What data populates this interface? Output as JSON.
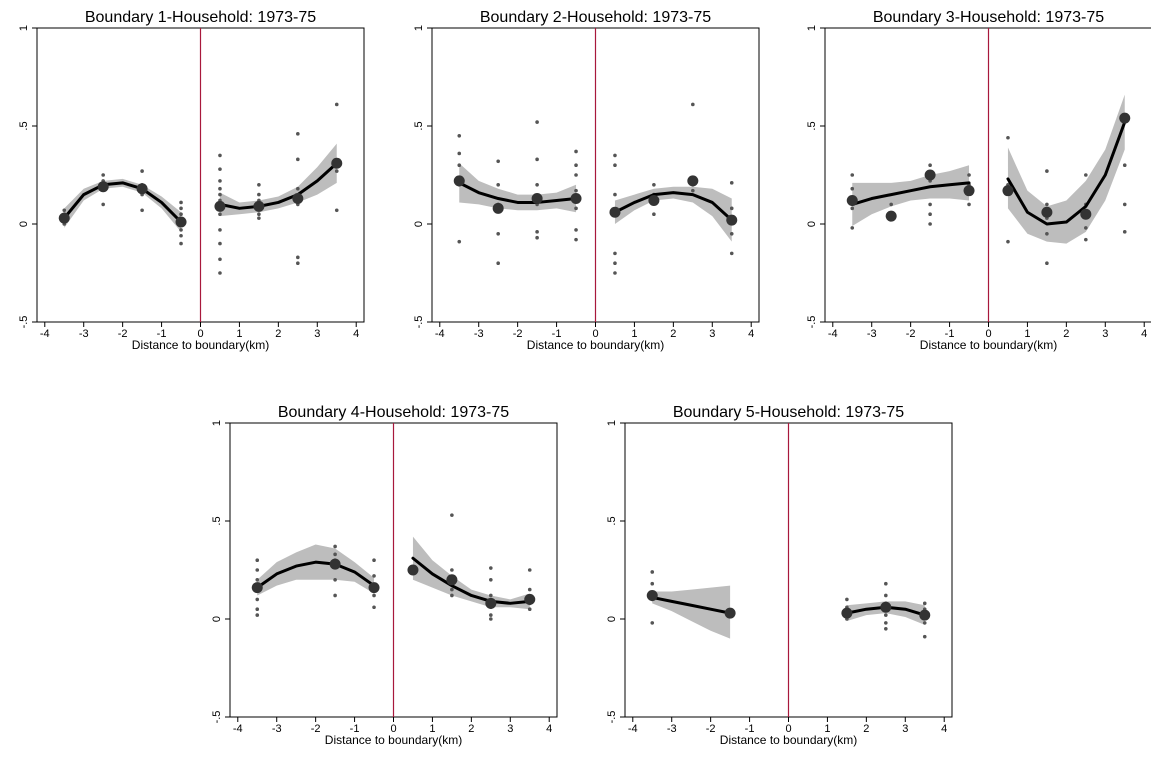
{
  "chart_data": [
    {
      "type": "scatter",
      "title": "Boundary 1-Household: 1973-75",
      "xlabel": "Distance to boundary(km)",
      "ylabel": "",
      "xlim": [
        -4.2,
        4.2
      ],
      "ylim": [
        -0.5,
        1.0
      ],
      "x_ticks": [
        "-4",
        "-3",
        "-2",
        "-1",
        "0",
        "1",
        "2",
        "3",
        "4"
      ],
      "y_ticks": [
        "-.5",
        "0",
        ".5",
        "1"
      ],
      "boundary_x": 0,
      "bin_means": [
        [
          -3.5,
          0.03
        ],
        [
          -2.5,
          0.19
        ],
        [
          -1.5,
          0.18
        ],
        [
          -0.5,
          0.01
        ],
        [
          0.5,
          0.09
        ],
        [
          1.5,
          0.09
        ],
        [
          2.5,
          0.13
        ],
        [
          3.5,
          0.31
        ]
      ],
      "raw_points": [
        [
          -3.5,
          0.05
        ],
        [
          -3.5,
          0.0
        ],
        [
          -3.5,
          0.07
        ],
        [
          -2.5,
          0.22
        ],
        [
          -2.5,
          0.25
        ],
        [
          -2.5,
          0.1
        ],
        [
          -1.5,
          0.27
        ],
        [
          -1.5,
          0.2
        ],
        [
          -1.5,
          0.15
        ],
        [
          -1.5,
          0.07
        ],
        [
          -0.5,
          0.11
        ],
        [
          -0.5,
          0.08
        ],
        [
          -0.5,
          0.05
        ],
        [
          -0.5,
          -0.03
        ],
        [
          -0.5,
          -0.06
        ],
        [
          -0.5,
          -0.1
        ],
        [
          0.5,
          0.35
        ],
        [
          0.5,
          0.28
        ],
        [
          0.5,
          0.22
        ],
        [
          0.5,
          0.18
        ],
        [
          0.5,
          0.15
        ],
        [
          0.5,
          0.12
        ],
        [
          0.5,
          0.05
        ],
        [
          0.5,
          -0.03
        ],
        [
          0.5,
          -0.1
        ],
        [
          0.5,
          -0.18
        ],
        [
          0.5,
          -0.25
        ],
        [
          1.5,
          0.2
        ],
        [
          1.5,
          0.15
        ],
        [
          1.5,
          0.12
        ],
        [
          1.5,
          0.05
        ],
        [
          1.5,
          0.03
        ],
        [
          2.5,
          0.46
        ],
        [
          2.5,
          0.33
        ],
        [
          2.5,
          0.18
        ],
        [
          2.5,
          0.1
        ],
        [
          2.5,
          -0.17
        ],
        [
          2.5,
          -0.2
        ],
        [
          3.5,
          0.61
        ],
        [
          3.5,
          0.27
        ],
        [
          3.5,
          0.07
        ]
      ],
      "fits": [
        {
          "x": [
            -3.5,
            -3.0,
            -2.5,
            -2.0,
            -1.5,
            -1.0,
            -0.5
          ],
          "y": [
            0.03,
            0.15,
            0.2,
            0.21,
            0.18,
            0.11,
            0.01
          ],
          "ci_low": [
            -0.02,
            0.12,
            0.18,
            0.19,
            0.16,
            0.08,
            -0.04
          ],
          "ci_high": [
            0.08,
            0.18,
            0.22,
            0.23,
            0.2,
            0.14,
            0.06
          ]
        },
        {
          "x": [
            0.5,
            1.0,
            1.5,
            2.0,
            2.5,
            3.0,
            3.5
          ],
          "y": [
            0.1,
            0.08,
            0.09,
            0.11,
            0.15,
            0.22,
            0.31
          ],
          "ci_low": [
            0.04,
            0.05,
            0.06,
            0.08,
            0.11,
            0.15,
            0.21
          ],
          "ci_high": [
            0.16,
            0.11,
            0.12,
            0.14,
            0.19,
            0.29,
            0.41
          ]
        }
      ]
    },
    {
      "type": "scatter",
      "title": "Boundary 2-Household: 1973-75",
      "xlabel": "Distance to boundary(km)",
      "ylabel": "",
      "xlim": [
        -4.2,
        4.2
      ],
      "ylim": [
        -0.5,
        1.0
      ],
      "x_ticks": [
        "-4",
        "-3",
        "-2",
        "-1",
        "0",
        "1",
        "2",
        "3",
        "4"
      ],
      "y_ticks": [
        "-.5",
        "0",
        ".5",
        "1"
      ],
      "boundary_x": 0,
      "bin_means": [
        [
          -3.5,
          0.22
        ],
        [
          -2.5,
          0.08
        ],
        [
          -1.5,
          0.13
        ],
        [
          -0.5,
          0.13
        ],
        [
          0.5,
          0.06
        ],
        [
          1.5,
          0.12
        ],
        [
          2.5,
          0.22
        ],
        [
          3.5,
          0.02
        ]
      ],
      "raw_points": [
        [
          -3.5,
          0.45
        ],
        [
          -3.5,
          0.36
        ],
        [
          -3.5,
          0.3
        ],
        [
          -3.5,
          0.2
        ],
        [
          -3.5,
          -0.09
        ],
        [
          -2.5,
          0.32
        ],
        [
          -2.5,
          0.2
        ],
        [
          -2.5,
          0.1
        ],
        [
          -2.5,
          -0.05
        ],
        [
          -2.5,
          -0.2
        ],
        [
          -1.5,
          0.52
        ],
        [
          -1.5,
          0.33
        ],
        [
          -1.5,
          0.2
        ],
        [
          -1.5,
          0.1
        ],
        [
          -1.5,
          -0.04
        ],
        [
          -1.5,
          -0.07
        ],
        [
          -0.5,
          0.37
        ],
        [
          -0.5,
          0.3
        ],
        [
          -0.5,
          0.25
        ],
        [
          -0.5,
          0.17
        ],
        [
          -0.5,
          0.08
        ],
        [
          -0.5,
          -0.03
        ],
        [
          -0.5,
          -0.08
        ],
        [
          0.5,
          0.35
        ],
        [
          0.5,
          0.3
        ],
        [
          0.5,
          0.15
        ],
        [
          0.5,
          0.05
        ],
        [
          0.5,
          -0.15
        ],
        [
          0.5,
          -0.2
        ],
        [
          0.5,
          -0.25
        ],
        [
          1.5,
          0.2
        ],
        [
          1.5,
          0.15
        ],
        [
          1.5,
          0.05
        ],
        [
          2.5,
          0.61
        ],
        [
          2.5,
          0.2
        ],
        [
          2.5,
          0.17
        ],
        [
          3.5,
          0.21
        ],
        [
          3.5,
          0.08
        ],
        [
          3.5,
          -0.05
        ],
        [
          3.5,
          -0.15
        ]
      ],
      "fits": [
        {
          "x": [
            -3.5,
            -3.0,
            -2.5,
            -2.0,
            -1.5,
            -1.0,
            -0.5
          ],
          "y": [
            0.21,
            0.16,
            0.13,
            0.11,
            0.11,
            0.12,
            0.13
          ],
          "ci_low": [
            0.11,
            0.1,
            0.08,
            0.07,
            0.07,
            0.08,
            0.06
          ],
          "ci_high": [
            0.31,
            0.22,
            0.18,
            0.15,
            0.15,
            0.16,
            0.2
          ]
        },
        {
          "x": [
            0.5,
            1.0,
            1.5,
            2.0,
            2.5,
            3.0,
            3.5
          ],
          "y": [
            0.06,
            0.11,
            0.15,
            0.16,
            0.15,
            0.11,
            0.02
          ],
          "ci_low": [
            0.0,
            0.07,
            0.12,
            0.13,
            0.11,
            0.04,
            -0.09
          ],
          "ci_high": [
            0.12,
            0.15,
            0.18,
            0.19,
            0.19,
            0.18,
            0.13
          ]
        }
      ]
    },
    {
      "type": "scatter",
      "title": "Boundary 3-Household: 1973-75",
      "xlabel": "Distance to boundary(km)",
      "ylabel": "",
      "xlim": [
        -4.2,
        4.2
      ],
      "ylim": [
        -0.5,
        1.0
      ],
      "x_ticks": [
        "-4",
        "-3",
        "-2",
        "-1",
        "0",
        "1",
        "2",
        "3",
        "4"
      ],
      "y_ticks": [
        "-.5",
        "0",
        ".5",
        "1"
      ],
      "boundary_x": 0,
      "bin_means": [
        [
          -3.5,
          0.12
        ],
        [
          -2.5,
          0.04
        ],
        [
          -1.5,
          0.25
        ],
        [
          -0.5,
          0.17
        ],
        [
          0.5,
          0.17
        ],
        [
          1.5,
          0.06
        ],
        [
          2.5,
          0.05
        ],
        [
          3.5,
          0.54
        ]
      ],
      "raw_points": [
        [
          -3.5,
          0.25
        ],
        [
          -3.5,
          0.18
        ],
        [
          -3.5,
          0.08
        ],
        [
          -3.5,
          -0.02
        ],
        [
          -2.5,
          0.1
        ],
        [
          -2.5,
          0.04
        ],
        [
          -1.5,
          0.3
        ],
        [
          -1.5,
          0.22
        ],
        [
          -1.5,
          0.1
        ],
        [
          -1.5,
          0.05
        ],
        [
          -1.5,
          0.0
        ],
        [
          -0.5,
          0.25
        ],
        [
          -0.5,
          0.2
        ],
        [
          -0.5,
          0.1
        ],
        [
          0.5,
          0.44
        ],
        [
          0.5,
          0.2
        ],
        [
          0.5,
          -0.09
        ],
        [
          1.5,
          0.27
        ],
        [
          1.5,
          0.1
        ],
        [
          1.5,
          0.03
        ],
        [
          1.5,
          -0.05
        ],
        [
          1.5,
          -0.2
        ],
        [
          2.5,
          0.25
        ],
        [
          2.5,
          0.1
        ],
        [
          2.5,
          -0.02
        ],
        [
          2.5,
          -0.08
        ],
        [
          3.5,
          0.3
        ],
        [
          3.5,
          0.1
        ],
        [
          3.5,
          -0.04
        ]
      ],
      "fits": [
        {
          "x": [
            -3.5,
            -3.0,
            -2.5,
            -2.0,
            -1.5,
            -1.0,
            -0.5
          ],
          "y": [
            0.1,
            0.13,
            0.15,
            0.17,
            0.19,
            0.2,
            0.21
          ],
          "ci_low": [
            -0.01,
            0.05,
            0.09,
            0.12,
            0.13,
            0.13,
            0.12
          ],
          "ci_high": [
            0.21,
            0.21,
            0.21,
            0.22,
            0.25,
            0.27,
            0.3
          ]
        },
        {
          "x": [
            0.5,
            1.0,
            1.5,
            2.0,
            2.5,
            3.0,
            3.5
          ],
          "y": [
            0.23,
            0.06,
            0.0,
            0.01,
            0.09,
            0.25,
            0.52
          ],
          "ci_low": [
            0.08,
            -0.05,
            -0.09,
            -0.1,
            -0.04,
            0.12,
            0.38
          ],
          "ci_high": [
            0.39,
            0.17,
            0.09,
            0.12,
            0.22,
            0.38,
            0.66
          ]
        }
      ]
    },
    {
      "type": "scatter",
      "title": "Boundary 4-Household: 1973-75",
      "xlabel": "Distance to boundary(km)",
      "ylabel": "",
      "xlim": [
        -4.2,
        4.2
      ],
      "ylim": [
        -0.5,
        1.0
      ],
      "x_ticks": [
        "-4",
        "-3",
        "-2",
        "-1",
        "0",
        "1",
        "2",
        "3",
        "4"
      ],
      "y_ticks": [
        "-.5",
        "0",
        ".5",
        "1"
      ],
      "boundary_x": 0,
      "bin_means": [
        [
          -3.5,
          0.16
        ],
        [
          -1.5,
          0.28
        ],
        [
          -0.5,
          0.16
        ],
        [
          0.5,
          0.25
        ],
        [
          1.5,
          0.2
        ],
        [
          2.5,
          0.08
        ],
        [
          3.5,
          0.1
        ]
      ],
      "raw_points": [
        [
          -3.5,
          0.3
        ],
        [
          -3.5,
          0.25
        ],
        [
          -3.5,
          0.2
        ],
        [
          -3.5,
          0.1
        ],
        [
          -3.5,
          0.05
        ],
        [
          -3.5,
          0.02
        ],
        [
          -1.5,
          0.37
        ],
        [
          -1.5,
          0.33
        ],
        [
          -1.5,
          0.3
        ],
        [
          -1.5,
          0.2
        ],
        [
          -1.5,
          0.12
        ],
        [
          -0.5,
          0.3
        ],
        [
          -0.5,
          0.22
        ],
        [
          -0.5,
          0.12
        ],
        [
          -0.5,
          0.06
        ],
        [
          0.5,
          0.26
        ],
        [
          1.5,
          0.53
        ],
        [
          1.5,
          0.25
        ],
        [
          1.5,
          0.15
        ],
        [
          1.5,
          0.12
        ],
        [
          2.5,
          0.26
        ],
        [
          2.5,
          0.2
        ],
        [
          2.5,
          0.12
        ],
        [
          2.5,
          0.06
        ],
        [
          2.5,
          0.02
        ],
        [
          2.5,
          0.0
        ],
        [
          3.5,
          0.25
        ],
        [
          3.5,
          0.15
        ],
        [
          3.5,
          0.08
        ],
        [
          3.5,
          0.05
        ]
      ],
      "fits": [
        {
          "x": [
            -3.5,
            -3.0,
            -2.5,
            -2.0,
            -1.5,
            -1.0,
            -0.5
          ],
          "y": [
            0.16,
            0.23,
            0.27,
            0.29,
            0.28,
            0.24,
            0.17
          ],
          "ci_low": [
            0.12,
            0.17,
            0.2,
            0.2,
            0.2,
            0.19,
            0.13
          ],
          "ci_high": [
            0.2,
            0.29,
            0.34,
            0.38,
            0.36,
            0.29,
            0.21
          ]
        },
        {
          "x": [
            0.5,
            1.0,
            1.5,
            2.0,
            2.5,
            3.0,
            3.5
          ],
          "y": [
            0.31,
            0.23,
            0.17,
            0.12,
            0.09,
            0.08,
            0.09
          ],
          "ci_low": [
            0.2,
            0.16,
            0.12,
            0.09,
            0.06,
            0.06,
            0.05
          ],
          "ci_high": [
            0.42,
            0.3,
            0.22,
            0.15,
            0.12,
            0.1,
            0.13
          ]
        }
      ]
    },
    {
      "type": "scatter",
      "title": "Boundary 5-Household: 1973-75",
      "xlabel": "Distance to boundary(km)",
      "ylabel": "",
      "xlim": [
        -4.2,
        4.2
      ],
      "ylim": [
        -0.5,
        1.0
      ],
      "x_ticks": [
        "-4",
        "-3",
        "-2",
        "-1",
        "0",
        "1",
        "2",
        "3",
        "4"
      ],
      "y_ticks": [
        "-.5",
        "0",
        ".5",
        "1"
      ],
      "boundary_x": 0,
      "bin_means": [
        [
          -3.5,
          0.12
        ],
        [
          -1.5,
          0.03
        ],
        [
          1.5,
          0.03
        ],
        [
          2.5,
          0.06
        ],
        [
          3.5,
          0.02
        ]
      ],
      "raw_points": [
        [
          -3.5,
          0.24
        ],
        [
          -3.5,
          0.18
        ],
        [
          -3.5,
          0.1
        ],
        [
          -3.5,
          -0.02
        ],
        [
          1.5,
          0.1
        ],
        [
          1.5,
          0.06
        ],
        [
          1.5,
          0.0
        ],
        [
          2.5,
          0.18
        ],
        [
          2.5,
          0.12
        ],
        [
          2.5,
          0.08
        ],
        [
          2.5,
          0.02
        ],
        [
          2.5,
          -0.02
        ],
        [
          2.5,
          -0.05
        ],
        [
          3.5,
          0.08
        ],
        [
          3.5,
          0.05
        ],
        [
          3.5,
          -0.02
        ],
        [
          3.5,
          -0.09
        ]
      ],
      "fits": [
        {
          "x": [
            -3.5,
            -3.0,
            -2.5,
            -2.0,
            -1.5
          ],
          "y": [
            0.11,
            0.09,
            0.07,
            0.05,
            0.03
          ],
          "ci_low": [
            0.08,
            0.04,
            -0.01,
            -0.06,
            -0.1
          ],
          "ci_high": [
            0.14,
            0.14,
            0.15,
            0.16,
            0.17
          ]
        },
        {
          "x": [
            1.5,
            2.0,
            2.5,
            3.0,
            3.5
          ],
          "y": [
            0.03,
            0.05,
            0.06,
            0.05,
            0.02
          ],
          "ci_low": [
            -0.01,
            0.02,
            0.03,
            0.01,
            -0.03
          ],
          "ci_high": [
            0.07,
            0.08,
            0.09,
            0.09,
            0.07
          ]
        }
      ]
    }
  ],
  "colors": {
    "boundary_line": "#a8183c",
    "ci_band": "#bdbdbd",
    "fit_line": "#000000",
    "bin_mean": "#333333",
    "raw_point": "#555555",
    "axis": "#000000"
  }
}
